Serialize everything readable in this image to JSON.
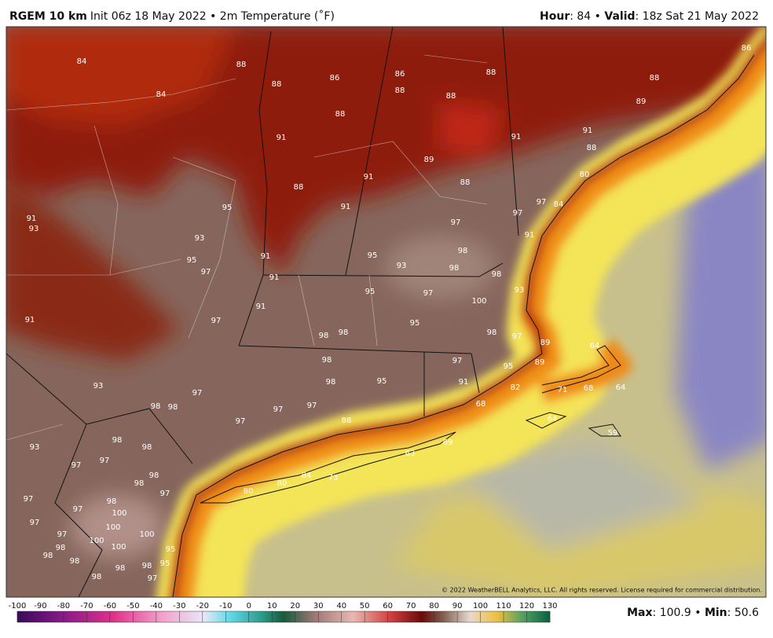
{
  "header": {
    "model": "RGEM 10 km",
    "description": "Init 06z 18 May 2022 • 2m Temperature (˚F)",
    "hour_key": "Hour",
    "hour_value": ": 84 • ",
    "valid_key": "Valid",
    "valid_value": ": 18z Sat 21 May 2022"
  },
  "map_labels": [
    84,
    84,
    88,
    88,
    86,
    86,
    88,
    88,
    88,
    86,
    88,
    89,
    88,
    91,
    91,
    91,
    88,
    89,
    88,
    91,
    88,
    80,
    95,
    91,
    97,
    84,
    97,
    91,
    93,
    93,
    97,
    91,
    95,
    97,
    95,
    93,
    98,
    98,
    91,
    91,
    98,
    93,
    95,
    97,
    100,
    91,
    91,
    97,
    95,
    98,
    98,
    98,
    97,
    89,
    64,
    98,
    97,
    95,
    89,
    93,
    98,
    95,
    91,
    82,
    71,
    68,
    64,
    97,
    98,
    98,
    97,
    97,
    68,
    88,
    64,
    97,
    98,
    98,
    93,
    97,
    97,
    59,
    98,
    98,
    97,
    84,
    73,
    80,
    80,
    97,
    98,
    97,
    100,
    100,
    97,
    100,
    100,
    97,
    100,
    95,
    98,
    98,
    98,
    98,
    95,
    98,
    97,
    98,
    69,
    63
  ],
  "colorbar": {
    "ticks": [
      -100,
      -90,
      -80,
      -70,
      -60,
      -50,
      -40,
      -30,
      -20,
      -10,
      0,
      10,
      20,
      30,
      40,
      50,
      60,
      70,
      80,
      90,
      100,
      110,
      120,
      130
    ]
  },
  "footer": {
    "copyright": "© 2022 WeatherBELL Analytics, LLC. All rights reserved. License required for commercial distribution.",
    "max_key": "Max",
    "max_value": ": 100.9 • ",
    "min_key": "Min",
    "min_value": ": 50.6"
  }
}
